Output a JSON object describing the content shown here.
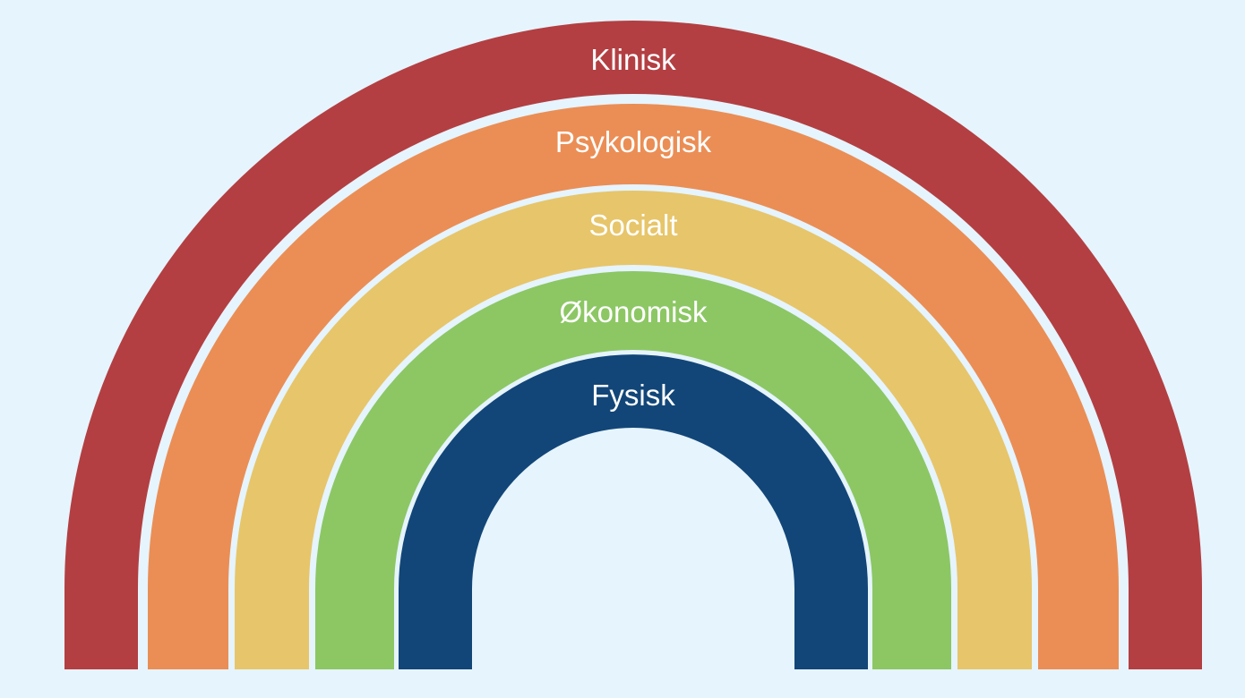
{
  "background_color": "#e6f4fd",
  "bands": [
    {
      "label": "Klinisk",
      "color": "#b33f42"
    },
    {
      "label": "Psykologisk",
      "color": "#eb8e55"
    },
    {
      "label": "Socialt",
      "color": "#e7c56a"
    },
    {
      "label": "Økonomisk",
      "color": "#8cc764"
    },
    {
      "label": "Fysisk",
      "color": "#124678"
    }
  ]
}
